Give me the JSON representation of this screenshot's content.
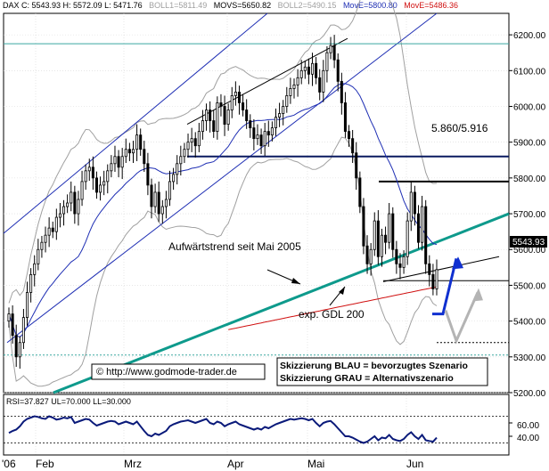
{
  "header": {
    "symbol_quote": "DAX C: 5543.93 H: 5572.09 L: 5471.76",
    "boll1": "BOLL1=5811.49",
    "movs": "MOVS=5650.82",
    "boll2": "BOLL2=5490.15",
    "move_blue": "MovE=5800.80",
    "move_red": "MovE=5486.36"
  },
  "colors": {
    "price": "#000000",
    "ma_blue": "#1f2fb4",
    "ema_red": "#d01010",
    "bollinger": "#a0a0a0",
    "trend_teal": "#0e9a8c",
    "hline_teal": "#3aa7a0",
    "scenario_blue": "#1030d0",
    "scenario_gray": "#b4b4b4",
    "rsi": "#0a1a7a",
    "last_price_box": "#000000"
  },
  "annotations": {
    "resistance_label": "5.860/5.916",
    "trend_label": "Aufwärtstrend seit Mai 2005",
    "gdl_label": "exp. GDL 200",
    "url_label": "© http://www.godmode-trader.de",
    "scenario_blue": "Skizzierung BLAU = bevorzugtes Szenario",
    "scenario_gray": "Skizzierung GRAU = Alternativszenario",
    "last_price": "5543.93"
  },
  "rsi_header": "RSI=37.827 UL=70.000 LL=30.000",
  "rsi_axis": [
    "60.00",
    "40.00"
  ],
  "x_labels": [
    "'06",
    "Feb",
    "Mrz",
    "Apr",
    "Mai",
    "Jun"
  ],
  "chart_data": {
    "type": "candlestick",
    "ylim": [
      5200,
      6260
    ],
    "ytick_labels": [
      "5200",
      "5300",
      "5400",
      "5500",
      "5600",
      "5700",
      "5800",
      "5900",
      "6000",
      "6100",
      "6200"
    ],
    "xlabel": "",
    "ylabel": "",
    "last_close": 5543.93,
    "last_high": 5572.09,
    "last_low": 5471.76,
    "horizontal_levels": [
      {
        "value": 6175,
        "color": "teal"
      },
      {
        "value": 5860,
        "color": "navy"
      },
      {
        "value": 5790,
        "color": "black"
      },
      {
        "value": 5513,
        "color": "black"
      },
      {
        "value": 5340,
        "color": "black",
        "style": "dashed"
      },
      {
        "value": 5305,
        "color": "teal",
        "style": "dashed"
      }
    ],
    "closes": [
      5420,
      5360,
      5300,
      5340,
      5410,
      5480,
      5530,
      5560,
      5600,
      5620,
      5640,
      5660,
      5650,
      5690,
      5700,
      5720,
      5730,
      5760,
      5700,
      5740,
      5790,
      5820,
      5830,
      5800,
      5760,
      5780,
      5790,
      5820,
      5840,
      5860,
      5830,
      5860,
      5880,
      5870,
      5880,
      5920,
      5880,
      5840,
      5780,
      5720,
      5760,
      5700,
      5720,
      5740,
      5790,
      5810,
      5840,
      5860,
      5880,
      5900,
      5910,
      5890,
      5930,
      5960,
      5990,
      5960,
      5930,
      6010,
      6000,
      5950,
      5990,
      6030,
      6040,
      6010,
      5990,
      5960,
      5940,
      5910,
      5920,
      5890,
      5930,
      5920,
      5940,
      5970,
      5980,
      6000,
      6030,
      6050,
      6060,
      6080,
      6100,
      6110,
      6090,
      6120,
      6080,
      6040,
      6100,
      6150,
      6170,
      6130,
      6070,
      6010,
      5930,
      5910,
      5870,
      5800,
      5720,
      5610,
      5560,
      5600,
      5680,
      5580,
      5640,
      5620,
      5700,
      5600,
      5560,
      5550,
      5580,
      5680,
      5760,
      5700,
      5620,
      5720,
      5560,
      5530,
      5490,
      5543.93
    ],
    "rsi": {
      "upper": 70,
      "lower": 30,
      "values": [
        45,
        48,
        50,
        55,
        62,
        66,
        68,
        70,
        69,
        67,
        66,
        70,
        68,
        65,
        66,
        68,
        67,
        69,
        60,
        62,
        64,
        66,
        65,
        60,
        56,
        58,
        60,
        62,
        63,
        62,
        58,
        60,
        62,
        60,
        58,
        62,
        55,
        48,
        42,
        40,
        44,
        42,
        45,
        48,
        55,
        58,
        60,
        62,
        63,
        64,
        62,
        60,
        62,
        64,
        66,
        60,
        58,
        62,
        60,
        55,
        58,
        60,
        62,
        58,
        56,
        54,
        52,
        50,
        52,
        50,
        54,
        52,
        55,
        58,
        60,
        62,
        64,
        66,
        65,
        66,
        67,
        66,
        64,
        66,
        60,
        55,
        60,
        62,
        63,
        58,
        52,
        46,
        40,
        40,
        38,
        35,
        32,
        30,
        32,
        36,
        40,
        34,
        38,
        37,
        42,
        36,
        34,
        33,
        36,
        42,
        46,
        40,
        36,
        42,
        34,
        33,
        32,
        37.827
      ]
    }
  }
}
